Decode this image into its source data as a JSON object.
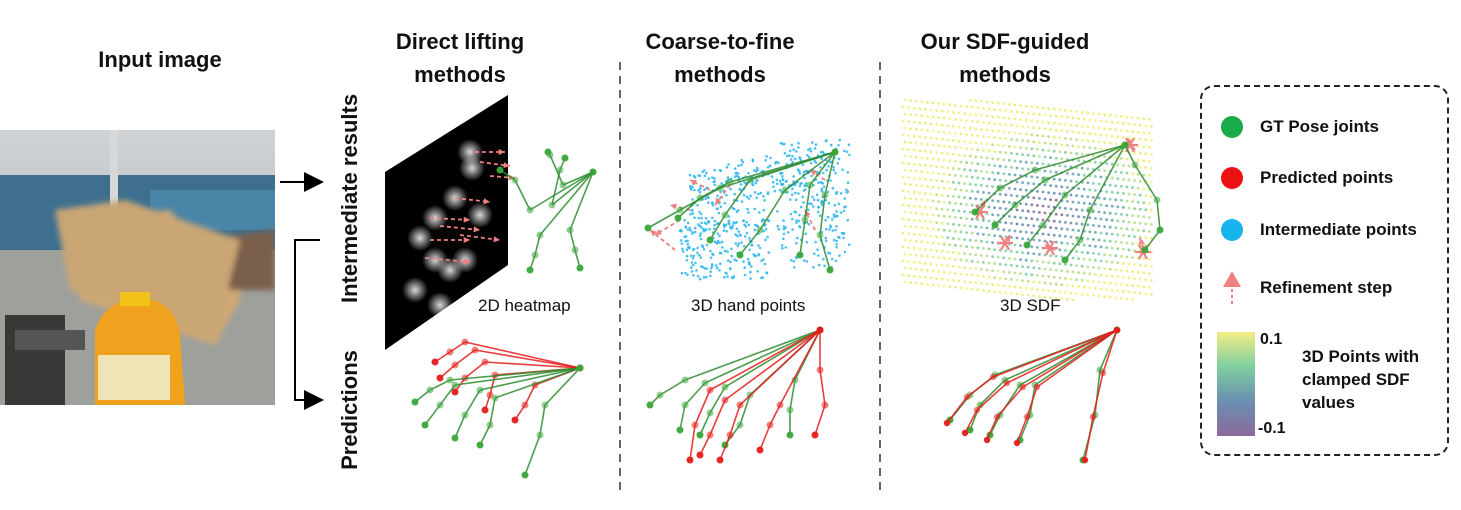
{
  "input": {
    "title": "Input image"
  },
  "columns": [
    {
      "title_line1": "Direct lifting",
      "title_line2": "methods",
      "caption": "2D heatmap"
    },
    {
      "title_line1": "Coarse-to-fine",
      "title_line2": "methods",
      "caption": "3D hand points"
    },
    {
      "title_line1": "Our SDF-guided",
      "title_line2": "methods",
      "caption": "3D SDF"
    }
  ],
  "rows": {
    "intermediate": "Intermediate results",
    "predictions": "Predictions"
  },
  "legend": {
    "items": [
      {
        "label": "GT Pose joints",
        "color": "#1aaa4a"
      },
      {
        "label": "Predicted points",
        "color": "#ee1111"
      },
      {
        "label": "Intermediate points",
        "color": "#19b4ee"
      },
      {
        "label": "Refinement step",
        "color": "#f08080"
      }
    ],
    "colorbar": {
      "max_label": "0.1",
      "min_label": "-0.1",
      "title": "3D Points with clamped SDF values",
      "colors": [
        "#f4ee84",
        "#7fcfa0",
        "#6a8fb2",
        "#8a6a9a"
      ]
    }
  },
  "colors": {
    "gt": "#2e8b2e",
    "gt_dot": "#3aa63a",
    "pred": "#e61c1c",
    "inter": "#2ab5ee",
    "refine": "#f08080"
  }
}
